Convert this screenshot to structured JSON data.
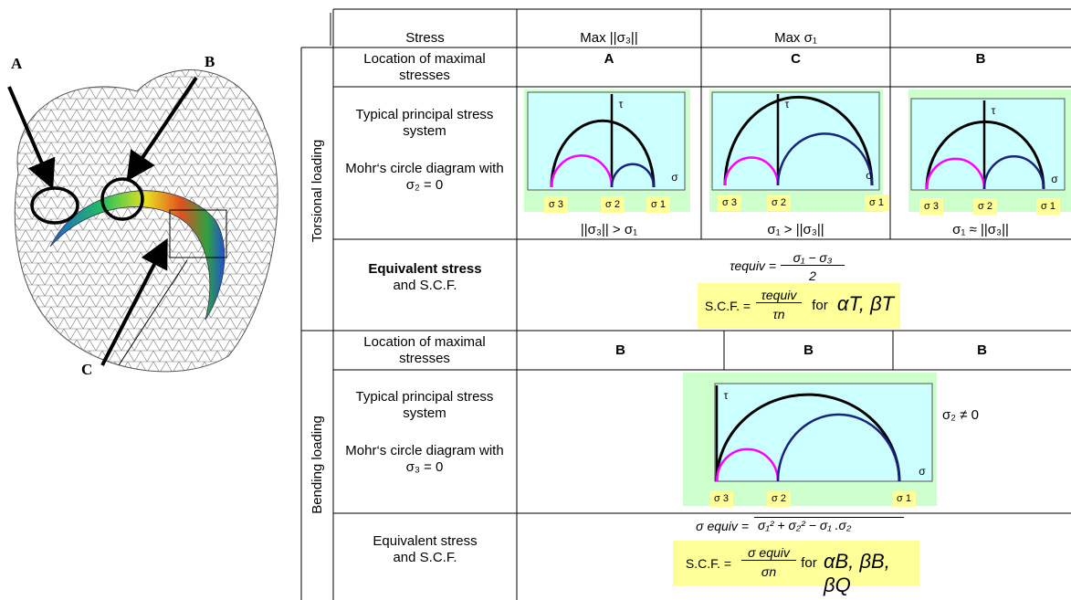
{
  "figure": {
    "labels": {
      "a": "A",
      "b": "B",
      "c": "C"
    }
  },
  "table": {
    "header": [
      "Stress",
      "Max ||σ₃||",
      "Max σ₁"
    ],
    "torsional": {
      "group": "Torsional loading",
      "location_label": "Location of maximal stresses",
      "locations": [
        "A",
        "C",
        "B"
      ],
      "system_label": "Typical principal stress system",
      "mohr_label": "Mohr‘s circle diagram with σ₂ = 0",
      "mohr": {
        "tau": "τ",
        "sigma": "σ",
        "points": [
          "σ 3",
          "σ 2",
          "σ 1"
        ]
      },
      "conditions": [
        "||σ₃|| > σ₁",
        "σ₁ > ||σ₃||",
        "σ₁ ≈ ||σ₃||"
      ],
      "equiv_label": "Equivalent stress",
      "scf_label": "and S.C.F.",
      "formula": {
        "lhs": "τequiv =",
        "numerator": "σ₁ − σ₃",
        "denominator": "2"
      },
      "scf": {
        "lhs": "S.C.F. =",
        "numerator": "τequiv",
        "denominator": "τn",
        "for": "for",
        "symbols": "αT, βT"
      }
    },
    "bending": {
      "group": "Bending loading",
      "location_label": "Location of maximal stresses",
      "locations": [
        "B",
        "B",
        "B"
      ],
      "system_label": "Typical principal stress system",
      "mohr_label": "Mohr‘s circle diagram with σ₃ = 0",
      "mohr": {
        "tau": "τ",
        "sigma": "σ",
        "points": [
          "σ 3",
          "σ 2",
          "σ 1"
        ]
      },
      "side_note": "σ₂ ≠ 0",
      "equiv_label": "Equivalent stress",
      "scf_label": "and S.C.F.",
      "formula": {
        "lhs": "σ equiv =",
        "radicand": "σ₁² + σ₂² − σ₁ .σ₂"
      },
      "scf": {
        "lhs": "S.C.F.  =",
        "numerator": "σ equiv",
        "denominator": "σn",
        "for": "for",
        "symbols": "αB, βB, βQ"
      }
    }
  }
}
